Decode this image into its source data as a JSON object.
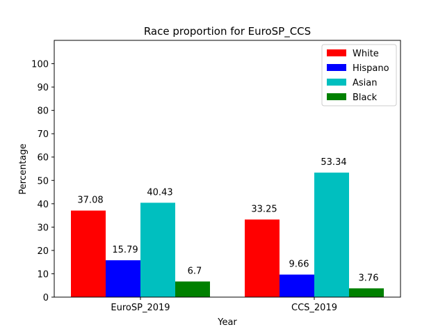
{
  "chart_data": {
    "type": "bar",
    "title": "Race proportion for EuroSP_CCS",
    "xlabel": "Year",
    "ylabel": "Percentage",
    "categories": [
      "EuroSP_2019",
      "CCS_2019"
    ],
    "ylim": [
      0,
      110
    ],
    "yticks": [
      0,
      10,
      20,
      30,
      40,
      50,
      60,
      70,
      80,
      90,
      100
    ],
    "legend_position": "top-right",
    "grid": false,
    "series": [
      {
        "name": "White",
        "color": "#ff0000",
        "values": [
          37.08,
          33.25
        ],
        "labels": [
          "37.08",
          "33.25"
        ]
      },
      {
        "name": "Hispano",
        "color": "#0000ff",
        "values": [
          15.79,
          9.66
        ],
        "labels": [
          "15.79",
          "9.66"
        ]
      },
      {
        "name": "Asian",
        "color": "#00bfbf",
        "values": [
          40.43,
          53.34
        ],
        "labels": [
          "40.43",
          "53.34"
        ]
      },
      {
        "name": "Black",
        "color": "#008000",
        "values": [
          6.7,
          3.76
        ],
        "labels": [
          "6.7",
          "3.76"
        ]
      }
    ]
  }
}
